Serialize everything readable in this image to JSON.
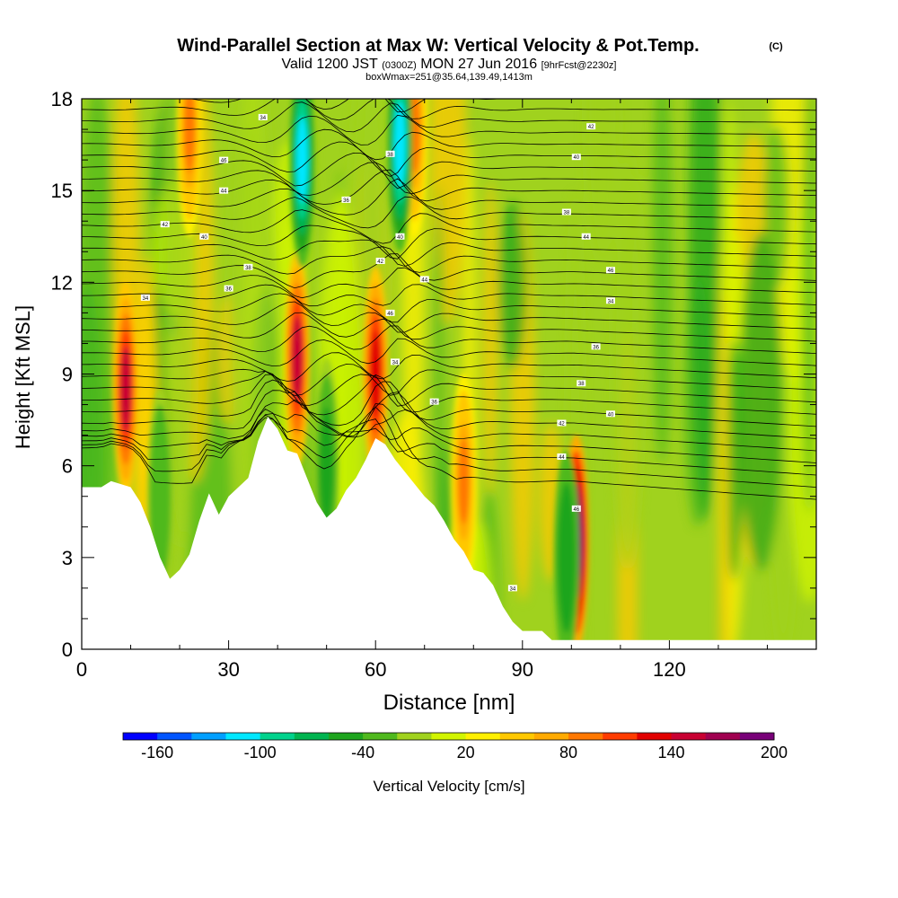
{
  "chart_data": {
    "type": "heatmap",
    "title": "Wind-Parallel Section at Max W: Vertical Velocity & Pot.Temp.",
    "title_mark": "(C)",
    "subtitle_prefix": "Valid 1200 JST",
    "subtitle_utc": "(0300Z)",
    "subtitle_date": "MON 27 Jun 2016",
    "subtitle_forecast": "[9hrFcst@2230z]",
    "subtitle_box": "boxWmax=251@35.64,139.49,1413m",
    "xlabel": "Distance [nm]",
    "ylabel": "Height [Kft MSL]",
    "xlim": [
      0,
      150
    ],
    "ylim": [
      0,
      18
    ],
    "x_ticks": [
      0,
      30,
      60,
      90,
      120
    ],
    "y_ticks": [
      0,
      3,
      6,
      9,
      12,
      15,
      18
    ],
    "colorbar": {
      "label": "Vertical Velocity [cm/s]",
      "tick_labels": [
        "-160",
        "-100",
        "-40",
        "20",
        "80",
        "140",
        "200"
      ],
      "tick_values": [
        -160,
        -100,
        -40,
        20,
        80,
        140,
        200
      ],
      "range": [
        -180,
        200
      ],
      "colors": [
        "#0000ff",
        "#0055ff",
        "#009fff",
        "#00e7ff",
        "#00d28c",
        "#00b450",
        "#1ea51e",
        "#50b91e",
        "#a0d21e",
        "#d2f500",
        "#fff000",
        "#ffc800",
        "#ffaa00",
        "#ff7800",
        "#ff3c00",
        "#e10000",
        "#c80032",
        "#a00050",
        "#780078"
      ]
    },
    "terrain": {
      "x": [
        0,
        4,
        6,
        8,
        10,
        12,
        14,
        16,
        18,
        20,
        22,
        24,
        26,
        28,
        30,
        32,
        34,
        36,
        38,
        40,
        42,
        44,
        46,
        48,
        50,
        52,
        54,
        56,
        58,
        60,
        62,
        64,
        66,
        68,
        70,
        72,
        74,
        76,
        78,
        80,
        82,
        84,
        86,
        88,
        90,
        92,
        94,
        96,
        98,
        100,
        102,
        104,
        150
      ],
      "height_kft": [
        5.3,
        5.3,
        5.5,
        5.4,
        5.3,
        4.8,
        4.0,
        3.0,
        2.3,
        2.6,
        3.1,
        4.2,
        5.1,
        4.4,
        5.0,
        5.3,
        5.6,
        6.8,
        7.6,
        7.2,
        6.5,
        6.4,
        5.6,
        4.8,
        4.3,
        4.6,
        5.2,
        5.6,
        6.2,
        6.9,
        6.7,
        6.2,
        5.8,
        5.4,
        5.0,
        4.7,
        4.2,
        3.6,
        3.2,
        2.6,
        2.5,
        2.1,
        1.4,
        0.9,
        0.6,
        0.6,
        0.6,
        0.3,
        0.3,
        0.3,
        0.3,
        0.3,
        0.3
      ]
    },
    "updraft_cores": [
      {
        "x": 9,
        "y": 8.5,
        "w": 190,
        "color_value": 140
      },
      {
        "x": 44,
        "y": 9.5,
        "w": 190,
        "color_value": 140
      },
      {
        "x": 60,
        "y": 9.0,
        "w": 150,
        "color_value": 120
      },
      {
        "x": 101,
        "y": 3.5,
        "w": 251,
        "color_value": 200
      },
      {
        "x": 68,
        "y": 17.0,
        "w": 100,
        "color_value": 80
      },
      {
        "x": 78,
        "y": 5.5,
        "w": 80,
        "color_value": 80
      },
      {
        "x": 22,
        "y": 17.0,
        "w": 100,
        "color_value": 80
      }
    ],
    "downdraft_cores": [
      {
        "x": 45,
        "y": 16.0,
        "w": -110,
        "color_value": -110
      },
      {
        "x": 65,
        "y": 16.5,
        "w": -110,
        "color_value": -110
      },
      {
        "x": 99,
        "y": 3.0,
        "w": -60,
        "color_value": -60
      },
      {
        "x": 16,
        "y": 5.0,
        "w": -40,
        "color_value": -40
      },
      {
        "x": 50,
        "y": 6.0,
        "w": -50,
        "color_value": -50
      }
    ],
    "isentrope_label_values": [
      "34",
      "36",
      "38",
      "40",
      "42",
      "44",
      "46"
    ]
  }
}
